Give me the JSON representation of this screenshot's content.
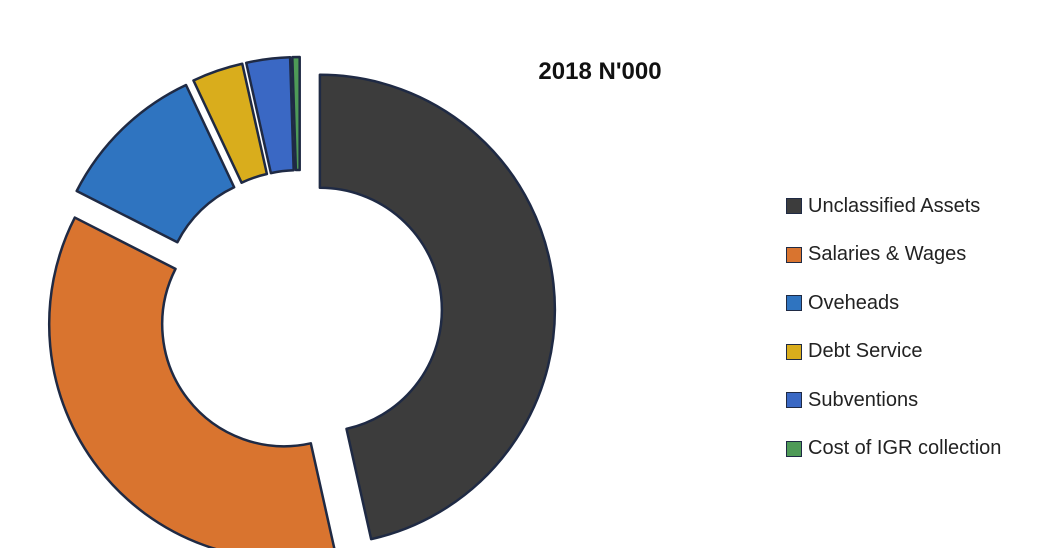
{
  "chart_data": {
    "type": "pie",
    "variant": "exploded-doughnut",
    "title": "2018 N'000",
    "legend_position": "right",
    "categories": [
      "Unclassified Assets",
      "Salaries & Wages",
      "Oveheads",
      "Debt Service",
      "Subventions",
      "Cost of IGR collection"
    ],
    "values": [
      46.5,
      36.0,
      10.5,
      3.5,
      3.0,
      0.5
    ],
    "colors": [
      "#3c3c3c",
      "#d9742f",
      "#2f74c0",
      "#d9ad1c",
      "#3a68c4",
      "#4e9a57"
    ],
    "slice_outline": "#1f2a44"
  }
}
